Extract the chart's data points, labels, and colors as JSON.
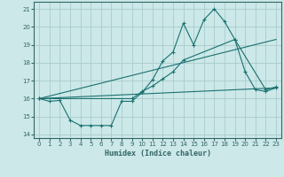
{
  "xlabel": "Humidex (Indice chaleur)",
  "bg_color": "#cce8e8",
  "grid_color": "#aacccc",
  "line_color": "#1a7070",
  "xlim": [
    -0.5,
    23.5
  ],
  "ylim": [
    13.8,
    21.4
  ],
  "yticks": [
    14,
    15,
    16,
    17,
    18,
    19,
    20,
    21
  ],
  "xticks": [
    0,
    1,
    2,
    3,
    4,
    5,
    6,
    7,
    8,
    9,
    10,
    11,
    12,
    13,
    14,
    15,
    16,
    17,
    18,
    19,
    20,
    21,
    22,
    23
  ],
  "line1_x": [
    0,
    1,
    2,
    3,
    4,
    5,
    6,
    7,
    8,
    9,
    10,
    11,
    12,
    13,
    14,
    15,
    16,
    17,
    18,
    19,
    20,
    21,
    22,
    23
  ],
  "line1_y": [
    16.0,
    15.85,
    15.9,
    14.8,
    14.5,
    14.5,
    14.5,
    14.5,
    15.85,
    15.85,
    16.35,
    17.05,
    18.1,
    18.6,
    20.2,
    19.0,
    20.4,
    21.0,
    20.3,
    19.3,
    17.5,
    16.5,
    16.4,
    16.6
  ],
  "line2_x": [
    0,
    9,
    10,
    11,
    12,
    13,
    14,
    19,
    22,
    23
  ],
  "line2_y": [
    16.0,
    16.0,
    16.4,
    16.7,
    17.1,
    17.5,
    18.15,
    19.3,
    16.5,
    16.65
  ],
  "line3_x": [
    0,
    23
  ],
  "line3_y": [
    16.0,
    19.3
  ],
  "line4_x": [
    0,
    23
  ],
  "line4_y": [
    16.0,
    16.6
  ]
}
